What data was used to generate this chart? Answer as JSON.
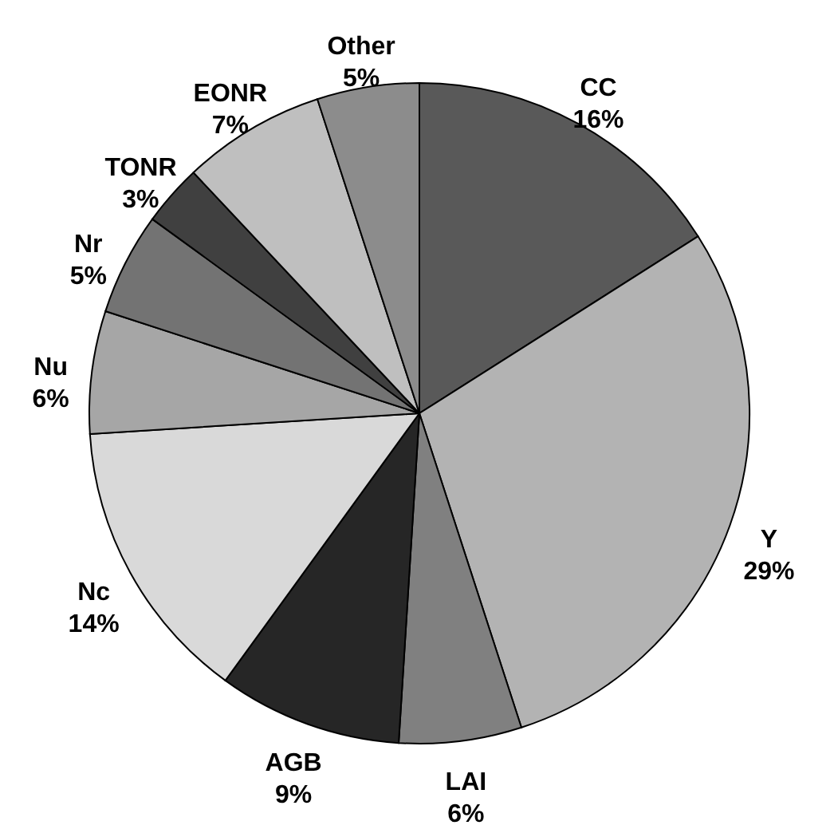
{
  "chart_data": {
    "type": "pie",
    "categories": [
      "CC",
      "Y",
      "LAI",
      "AGB",
      "Nc",
      "Nu",
      "Nr",
      "TONR",
      "EONR",
      "Other"
    ],
    "values": [
      16,
      29,
      6,
      9,
      14,
      6,
      5,
      3,
      7,
      5
    ],
    "value_labels": [
      "16%",
      "29%",
      "6%",
      "9%",
      "14%",
      "6%",
      "5%",
      "3%",
      "7%",
      "5%"
    ],
    "colors": [
      "#595959",
      "#b3b3b3",
      "#808080",
      "#262626",
      "#d9d9d9",
      "#a6a6a6",
      "#737373",
      "#404040",
      "#bfbfbf",
      "#8c8c8c"
    ]
  }
}
